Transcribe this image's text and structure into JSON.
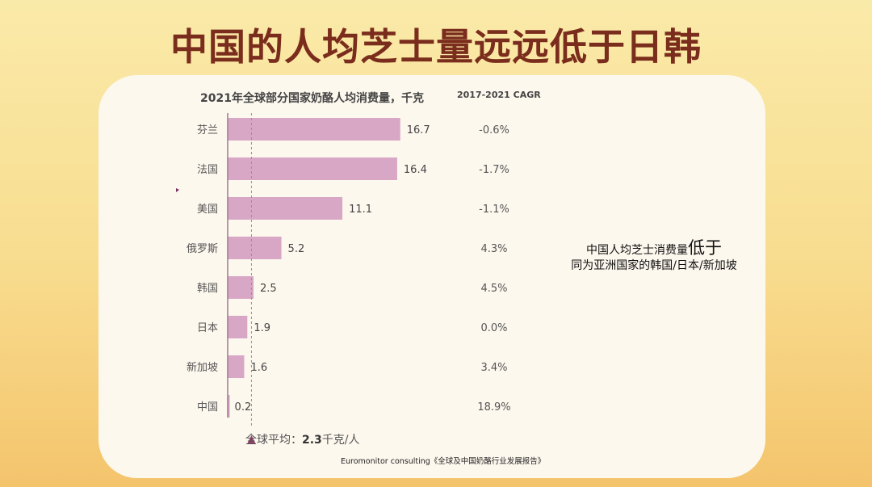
{
  "title": "中国的人均芝士量远远低于日韩",
  "chart_data": {
    "type": "bar",
    "orientation": "horizontal",
    "title": "2021年全球部分国家奶酪人均消费量，千克",
    "categories": [
      "芬兰",
      "法国",
      "美国",
      "俄罗斯",
      "韩国",
      "日本",
      "新加坡",
      "中国"
    ],
    "values": [
      16.7,
      16.4,
      11.1,
      5.2,
      2.5,
      1.9,
      1.6,
      0.2
    ],
    "value_labels": [
      "16.7",
      "16.4",
      "11.1",
      "5.2",
      "2.5",
      "1.9",
      "1.6",
      "0.2"
    ],
    "cagr_header": "2017-2021  CAGR",
    "cagr": [
      "-0.6%",
      "-1.7%",
      "-1.1%",
      "4.3%",
      "4.5%",
      "0.0%",
      "3.4%",
      "18.9%"
    ],
    "reference_line": {
      "value": 2.3,
      "label_prefix": "全球平均：",
      "label_value": "2.3",
      "label_unit": "千克/人"
    },
    "bar_color": "#d8a7c6",
    "grid": false
  },
  "note": {
    "line1_prefix": "中国人均芝士消费量",
    "line1_emphasis": "低于",
    "line2": "同为亚洲国家的韩国/日本/新加坡"
  },
  "source": "Euromonitor consulting《全球及中国奶酪行业发展报告》"
}
